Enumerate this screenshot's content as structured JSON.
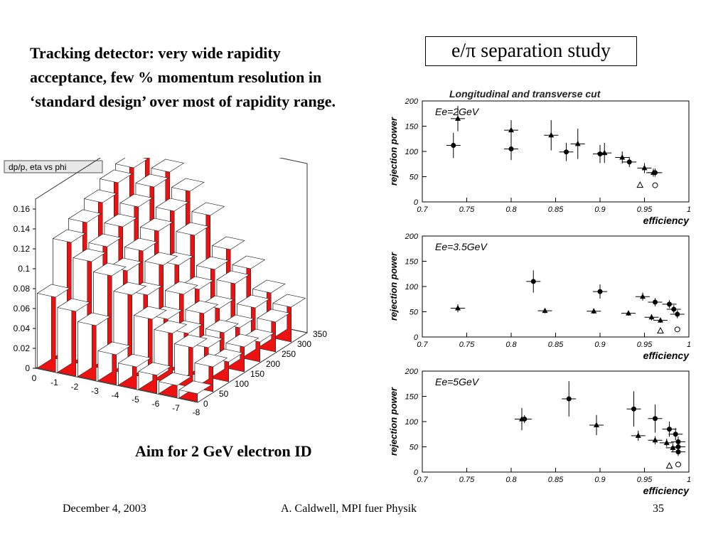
{
  "intro_text": "Tracking detector: very wide rapidity acceptance, few % momentum resolution in ‘standard design’ over most of rapidity range.",
  "study_title": "e/π separation study",
  "aim_text": "Aim for 2 GeV electron ID",
  "footer": {
    "date": "December 4, 2003",
    "author": "A. Caldwell, MPI fuer Physik",
    "page": "35"
  },
  "chart_data": [
    {
      "type": "bar",
      "title": "dp/p, eta vs phi",
      "z_ticks": [
        "0",
        "0.02",
        "0.04",
        "0.06",
        "0.08",
        "0.1",
        "0.12",
        "0.14",
        "0.16"
      ],
      "x_ticks": [
        "0",
        "-1",
        "-2",
        "-3",
        "-4",
        "-5",
        "-6",
        "-7",
        "-8"
      ],
      "y_ticks": [
        "0",
        "50",
        "100",
        "150",
        "200",
        "250",
        "300",
        "350"
      ],
      "zlim": [
        0,
        0.16
      ],
      "eta": [
        -0.5,
        -1.5,
        -2.5,
        -3.5,
        -4.5,
        -5.5,
        -6.5,
        -7.5
      ],
      "phi": [
        25,
        75,
        125,
        175,
        225,
        275,
        325
      ],
      "values": [
        [
          0.075,
          0.065,
          0.055,
          0.03,
          0.022,
          0.018,
          0.012,
          0.008
        ],
        [
          0.12,
          0.105,
          0.095,
          0.08,
          0.06,
          0.05,
          0.04,
          0.025
        ],
        [
          0.13,
          0.11,
          0.09,
          0.07,
          0.05,
          0.04,
          0.03,
          0.02
        ],
        [
          0.14,
          0.12,
          0.1,
          0.09,
          0.065,
          0.05,
          0.035,
          0.025
        ],
        [
          0.15,
          0.13,
          0.11,
          0.08,
          0.06,
          0.045,
          0.03,
          0.02
        ],
        [
          0.155,
          0.14,
          0.12,
          0.1,
          0.07,
          0.06,
          0.04,
          0.03
        ],
        [
          0.16,
          0.145,
          0.13,
          0.11,
          0.08,
          0.065,
          0.045,
          0.035
        ]
      ]
    },
    {
      "type": "scatter",
      "title": "Longitudinal and transverse cut",
      "label": "Ee=2GeV",
      "xlabel": "efficiency",
      "ylabel": "rejection power",
      "xlim": [
        0.7,
        1
      ],
      "ylim": [
        0,
        200
      ],
      "x_ticks": [
        "0.7",
        "0.75",
        "0.8",
        "0.85",
        "0.9",
        "0.95",
        "1"
      ],
      "y_ticks": [
        "0",
        "50",
        "100",
        "150",
        "200"
      ],
      "series": [
        {
          "marker": "triangle",
          "points": [
            [
              0.74,
              165,
              25
            ],
            [
              0.8,
              142,
              20
            ],
            [
              0.845,
              132,
              30
            ],
            [
              0.875,
              115,
              30
            ],
            [
              0.905,
              97,
              20
            ],
            [
              0.925,
              88,
              12
            ],
            [
              0.95,
              67,
              10
            ],
            [
              0.96,
              58,
              8
            ]
          ]
        },
        {
          "marker": "circle",
          "points": [
            [
              0.735,
              112,
              25
            ],
            [
              0.8,
              105,
              22
            ],
            [
              0.862,
              99,
              18
            ],
            [
              0.9,
              95,
              18
            ],
            [
              0.933,
              79,
              10
            ],
            [
              0.962,
              58,
              8
            ]
          ]
        },
        {
          "marker": "triangle-open",
          "points": [
            [
              0.945,
              33,
              0
            ]
          ]
        },
        {
          "marker": "circle-open",
          "points": [
            [
              0.962,
              33,
              0
            ]
          ]
        }
      ]
    },
    {
      "type": "scatter",
      "label": "Ee=3.5GeV",
      "xlabel": "efficiency",
      "ylabel": "rejection power",
      "xlim": [
        0.7,
        1
      ],
      "ylim": [
        0,
        200
      ],
      "x_ticks": [
        "0.7",
        "0.75",
        "0.8",
        "0.85",
        "0.9",
        "0.95",
        "1"
      ],
      "y_ticks": [
        "0",
        "50",
        "100",
        "150",
        "200"
      ],
      "series": [
        {
          "marker": "triangle",
          "points": [
            [
              0.74,
              57,
              8
            ],
            [
              0.838,
              52,
              5
            ],
            [
              0.893,
              51,
              5
            ],
            [
              0.932,
              47,
              5
            ],
            [
              0.948,
              80,
              8
            ],
            [
              0.958,
              39,
              6
            ],
            [
              0.968,
              33,
              5
            ]
          ]
        },
        {
          "marker": "circle",
          "points": [
            [
              0.825,
              110,
              22
            ],
            [
              0.9,
              90,
              14
            ],
            [
              0.962,
              69,
              8
            ],
            [
              0.978,
              65,
              8
            ],
            [
              0.983,
              55,
              8
            ],
            [
              0.987,
              45,
              8
            ]
          ]
        },
        {
          "marker": "triangle-open",
          "points": [
            [
              0.968,
              12,
              0
            ]
          ]
        },
        {
          "marker": "circle-open",
          "points": [
            [
              0.987,
              15,
              0
            ]
          ]
        }
      ]
    },
    {
      "type": "scatter",
      "label": "Ee=5GeV",
      "xlabel": "efficiency",
      "ylabel": "rejection power",
      "xlim": [
        0.7,
        1
      ],
      "ylim": [
        0,
        200
      ],
      "x_ticks": [
        "0.7",
        "0.75",
        "0.8",
        "0.85",
        "0.9",
        "0.95",
        "1"
      ],
      "y_ticks": [
        "0",
        "50",
        "100",
        "150",
        "200"
      ],
      "series": [
        {
          "marker": "triangle",
          "points": [
            [
              0.812,
              105,
              22
            ],
            [
              0.896,
              93,
              20
            ],
            [
              0.943,
              72,
              10
            ],
            [
              0.962,
              63,
              8
            ],
            [
              0.975,
              58,
              8
            ],
            [
              0.982,
              48,
              8
            ]
          ]
        },
        {
          "marker": "circle",
          "points": [
            [
              0.815,
              105,
              8
            ],
            [
              0.865,
              145,
              35
            ],
            [
              0.938,
              125,
              35
            ],
            [
              0.962,
              106,
              28
            ],
            [
              0.978,
              85,
              15
            ],
            [
              0.985,
              75,
              12
            ],
            [
              0.988,
              60,
              10
            ],
            [
              0.988,
              50,
              8
            ],
            [
              0.988,
              40,
              8
            ]
          ]
        },
        {
          "marker": "triangle-open",
          "points": [
            [
              0.978,
              12,
              0
            ]
          ]
        },
        {
          "marker": "circle-open",
          "points": [
            [
              0.988,
              15,
              0
            ]
          ]
        }
      ]
    }
  ]
}
